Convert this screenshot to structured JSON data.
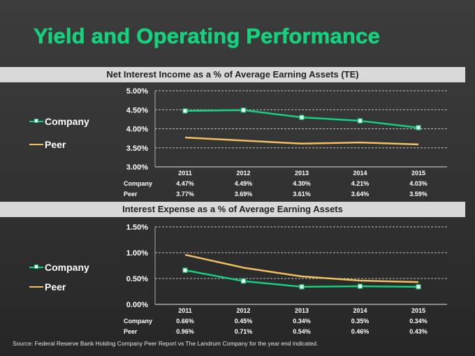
{
  "title": "Yield and Operating Performance",
  "source": "Source:  Federal Reserve Bank Holding Company Peer Report vs The Landrum Company for the year end indicated.",
  "colors": {
    "title": "#15d17c",
    "company": "#15d17c",
    "peer": "#f2c060",
    "header_bar": "#d9d9d9"
  },
  "legend": {
    "company": "Company",
    "peer": "Peer"
  },
  "chart_data": [
    {
      "type": "line",
      "title": "Net Interest Income as a % of Average Earning Assets (TE)",
      "categories": [
        "2011",
        "2012",
        "2013",
        "2014",
        "2015"
      ],
      "series": [
        {
          "name": "Company",
          "values": [
            4.47,
            4.49,
            4.3,
            4.21,
            4.03
          ],
          "labels": [
            "4.47%",
            "4.49%",
            "4.30%",
            "4.21%",
            "4.03%"
          ]
        },
        {
          "name": "Peer",
          "values": [
            3.77,
            3.69,
            3.61,
            3.64,
            3.59
          ],
          "labels": [
            "3.77%",
            "3.69%",
            "3.61%",
            "3.64%",
            "3.59%"
          ]
        }
      ],
      "ylim": [
        3.0,
        5.0
      ],
      "yticks": [
        "3.00%",
        "3.50%",
        "4.00%",
        "4.50%",
        "5.00%"
      ],
      "ytick_values": [
        3.0,
        3.5,
        4.0,
        4.5,
        5.0
      ],
      "grid": true,
      "legend_position": "left",
      "xlabel": "",
      "ylabel": ""
    },
    {
      "type": "line",
      "title": "Interest Expense as a % of Average Earning Assets",
      "categories": [
        "2011",
        "2012",
        "2013",
        "2014",
        "2015"
      ],
      "series": [
        {
          "name": "Company",
          "values": [
            0.66,
            0.45,
            0.34,
            0.35,
            0.34
          ],
          "labels": [
            "0.66%",
            "0.45%",
            "0.34%",
            "0.35%",
            "0.34%"
          ]
        },
        {
          "name": "Peer",
          "values": [
            0.96,
            0.71,
            0.54,
            0.46,
            0.43
          ],
          "labels": [
            "0.96%",
            "0.71%",
            "0.54%",
            "0.46%",
            "0.43%"
          ]
        }
      ],
      "ylim": [
        0.0,
        1.5
      ],
      "yticks": [
        "0.00%",
        "0.50%",
        "1.00%",
        "1.50%"
      ],
      "ytick_values": [
        0.0,
        0.5,
        1.0,
        1.5
      ],
      "grid": true,
      "legend_position": "left",
      "xlabel": "",
      "ylabel": ""
    }
  ]
}
